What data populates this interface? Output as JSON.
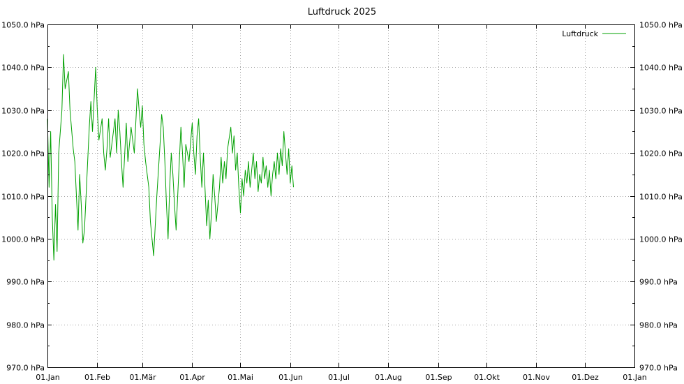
{
  "chart_data": {
    "type": "line",
    "title": "Luftdruck 2025",
    "xlabel": "",
    "ylabel": "",
    "ylim": [
      970,
      1050
    ],
    "xlim": [
      "2025-01-01",
      "2026-01-01"
    ],
    "y_ticks": [
      {
        "value": 1050,
        "label": "1050.0 hPa"
      },
      {
        "value": 1040,
        "label": "1040.0 hPa"
      },
      {
        "value": 1030,
        "label": "1030.0 hPa"
      },
      {
        "value": 1020,
        "label": "1020.0 hPa"
      },
      {
        "value": 1010,
        "label": "1010.0 hPa"
      },
      {
        "value": 1000,
        "label": "1000.0 hPa"
      },
      {
        "value": 990,
        "label": "990.0 hPa"
      },
      {
        "value": 980,
        "label": "980.0 hPa"
      },
      {
        "value": 970,
        "label": "970.0 hPa"
      }
    ],
    "x_ticks": [
      {
        "date": "2025-01-01",
        "label": "01.Jan"
      },
      {
        "date": "2025-02-01",
        "label": "01.Feb"
      },
      {
        "date": "2025-03-01",
        "label": "01.Mär"
      },
      {
        "date": "2025-04-01",
        "label": "01.Apr"
      },
      {
        "date": "2025-05-01",
        "label": "01.Mai"
      },
      {
        "date": "2025-06-01",
        "label": "01.Jun"
      },
      {
        "date": "2025-07-01",
        "label": "01.Jul"
      },
      {
        "date": "2025-08-01",
        "label": "01.Aug"
      },
      {
        "date": "2025-09-01",
        "label": "01.Sep"
      },
      {
        "date": "2025-10-01",
        "label": "01.Okt"
      },
      {
        "date": "2025-11-01",
        "label": "01.Nov"
      },
      {
        "date": "2025-12-01",
        "label": "01.Dez"
      },
      {
        "date": "2026-01-01",
        "label": "01.Jan"
      }
    ],
    "grid": true,
    "legend": {
      "position": "top-right"
    },
    "series": [
      {
        "name": "Luftdruck",
        "color": "#00a000",
        "points": [
          [
            "2025-01-01",
            1028
          ],
          [
            "2025-01-02",
            1012
          ],
          [
            "2025-01-03",
            1025
          ],
          [
            "2025-01-04",
            1005
          ],
          [
            "2025-01-05",
            995
          ],
          [
            "2025-01-06",
            1008
          ],
          [
            "2025-01-07",
            997
          ],
          [
            "2025-01-08",
            1020
          ],
          [
            "2025-01-10",
            1030
          ],
          [
            "2025-01-11",
            1043
          ],
          [
            "2025-01-12",
            1035
          ],
          [
            "2025-01-14",
            1039
          ],
          [
            "2025-01-15",
            1030
          ],
          [
            "2025-01-17",
            1021
          ],
          [
            "2025-01-18",
            1018
          ],
          [
            "2025-01-20",
            1002
          ],
          [
            "2025-01-21",
            1015
          ],
          [
            "2025-01-22",
            1008
          ],
          [
            "2025-01-23",
            999
          ],
          [
            "2025-01-24",
            1002
          ],
          [
            "2025-01-26",
            1018
          ],
          [
            "2025-01-27",
            1026
          ],
          [
            "2025-01-28",
            1032
          ],
          [
            "2025-01-29",
            1025
          ],
          [
            "2025-01-31",
            1040
          ],
          [
            "2025-02-01",
            1030
          ],
          [
            "2025-02-02",
            1023
          ],
          [
            "2025-02-04",
            1028
          ],
          [
            "2025-02-05",
            1020
          ],
          [
            "2025-02-06",
            1016
          ],
          [
            "2025-02-07",
            1021
          ],
          [
            "2025-02-08",
            1028
          ],
          [
            "2025-02-09",
            1019
          ],
          [
            "2025-02-10",
            1022
          ],
          [
            "2025-02-12",
            1028
          ],
          [
            "2025-02-13",
            1020
          ],
          [
            "2025-02-14",
            1030
          ],
          [
            "2025-02-15",
            1025
          ],
          [
            "2025-02-16",
            1018
          ],
          [
            "2025-02-17",
            1012
          ],
          [
            "2025-02-19",
            1027
          ],
          [
            "2025-02-20",
            1018
          ],
          [
            "2025-02-22",
            1026
          ],
          [
            "2025-02-24",
            1020
          ],
          [
            "2025-02-26",
            1035
          ],
          [
            "2025-02-27",
            1030
          ],
          [
            "2025-02-28",
            1026
          ],
          [
            "2025-03-01",
            1031
          ],
          [
            "2025-03-02",
            1022
          ],
          [
            "2025-03-03",
            1018
          ],
          [
            "2025-03-05",
            1012
          ],
          [
            "2025-03-06",
            1004
          ],
          [
            "2025-03-07",
            1000
          ],
          [
            "2025-03-08",
            996
          ],
          [
            "2025-03-09",
            1003
          ],
          [
            "2025-03-10",
            1010
          ],
          [
            "2025-03-12",
            1022
          ],
          [
            "2025-03-13",
            1029
          ],
          [
            "2025-03-14",
            1026
          ],
          [
            "2025-03-15",
            1018
          ],
          [
            "2025-03-16",
            1008
          ],
          [
            "2025-03-17",
            1000
          ],
          [
            "2025-03-18",
            1012
          ],
          [
            "2025-03-19",
            1020
          ],
          [
            "2025-03-20",
            1015
          ],
          [
            "2025-03-21",
            1008
          ],
          [
            "2025-03-22",
            1002
          ],
          [
            "2025-03-24",
            1018
          ],
          [
            "2025-03-25",
            1026
          ],
          [
            "2025-03-26",
            1020
          ],
          [
            "2025-03-27",
            1012
          ],
          [
            "2025-03-28",
            1022
          ],
          [
            "2025-03-30",
            1018
          ],
          [
            "2025-04-01",
            1027
          ],
          [
            "2025-04-02",
            1020
          ],
          [
            "2025-04-03",
            1015
          ],
          [
            "2025-04-04",
            1024
          ],
          [
            "2025-04-05",
            1028
          ],
          [
            "2025-04-06",
            1019
          ],
          [
            "2025-04-07",
            1012
          ],
          [
            "2025-04-08",
            1020
          ],
          [
            "2025-04-10",
            1003
          ],
          [
            "2025-04-11",
            1009
          ],
          [
            "2025-04-12",
            1000
          ],
          [
            "2025-04-13",
            1006
          ],
          [
            "2025-04-14",
            1015
          ],
          [
            "2025-04-15",
            1010
          ],
          [
            "2025-04-16",
            1004
          ],
          [
            "2025-04-18",
            1012
          ],
          [
            "2025-04-19",
            1019
          ],
          [
            "2025-04-20",
            1013
          ],
          [
            "2025-04-21",
            1018
          ],
          [
            "2025-04-22",
            1014
          ],
          [
            "2025-04-23",
            1021
          ],
          [
            "2025-04-25",
            1026
          ],
          [
            "2025-04-26",
            1020
          ],
          [
            "2025-04-27",
            1024
          ],
          [
            "2025-04-28",
            1016
          ],
          [
            "2025-04-29",
            1020
          ],
          [
            "2025-04-30",
            1012
          ],
          [
            "2025-05-01",
            1006
          ],
          [
            "2025-05-02",
            1014
          ],
          [
            "2025-05-03",
            1010
          ],
          [
            "2025-05-04",
            1016
          ],
          [
            "2025-05-05",
            1013
          ],
          [
            "2025-05-06",
            1018
          ],
          [
            "2025-05-07",
            1012
          ],
          [
            "2025-05-08",
            1016
          ],
          [
            "2025-05-09",
            1020
          ],
          [
            "2025-05-10",
            1014
          ],
          [
            "2025-05-11",
            1018
          ],
          [
            "2025-05-12",
            1011
          ],
          [
            "2025-05-13",
            1015
          ],
          [
            "2025-05-14",
            1013
          ],
          [
            "2025-05-15",
            1019
          ],
          [
            "2025-05-16",
            1014
          ],
          [
            "2025-05-17",
            1017
          ],
          [
            "2025-05-18",
            1012
          ],
          [
            "2025-05-19",
            1016
          ],
          [
            "2025-05-20",
            1010
          ],
          [
            "2025-05-21",
            1015
          ],
          [
            "2025-05-22",
            1018
          ],
          [
            "2025-05-23",
            1014
          ],
          [
            "2025-05-24",
            1020
          ],
          [
            "2025-05-25",
            1015
          ],
          [
            "2025-05-26",
            1021
          ],
          [
            "2025-05-27",
            1017
          ],
          [
            "2025-05-28",
            1025
          ],
          [
            "2025-05-29",
            1020
          ],
          [
            "2025-05-30",
            1015
          ],
          [
            "2025-05-31",
            1021
          ],
          [
            "2025-06-01",
            1013
          ],
          [
            "2025-06-02",
            1017
          ],
          [
            "2025-06-03",
            1012
          ]
        ]
      }
    ]
  }
}
